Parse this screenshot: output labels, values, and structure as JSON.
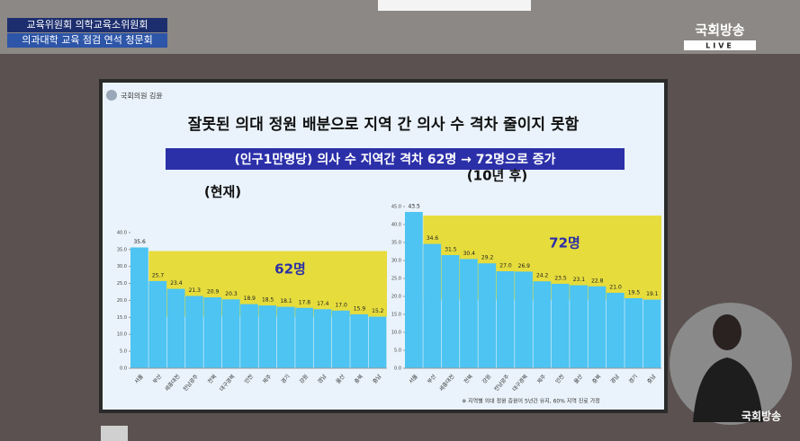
{
  "broadcast": {
    "caption_line1": "교육위원회 의학교육소위원회",
    "caption_line2": "의과대학 교육 점검 연석 청문회",
    "logo": "국회방송",
    "live": "LIVE",
    "watermark": "국회방송"
  },
  "slide": {
    "author": "국회의원 김윤",
    "title": "잘못된 의대 정원 배분으로 지역 간 의사 수 격차 줄이지 못함",
    "subtitle": "(인구1만명당) 의사 수 지역간 격차 62명 → 72명으로 증가",
    "footnote": "※ 지역별 의대 정원 증원이 5년간 유지, 60% 지역 진료 가정"
  },
  "chart_data": [
    {
      "type": "bar",
      "title": "(현재)",
      "annotation": "62명",
      "categories": [
        "서울",
        "부산",
        "세종대전",
        "전남광주",
        "전북",
        "대구경북",
        "인천",
        "제주",
        "경기",
        "강원",
        "경남",
        "울산",
        "충북",
        "충남"
      ],
      "values": [
        35.6,
        25.7,
        23.4,
        21.3,
        20.9,
        20.3,
        18.9,
        18.5,
        18.1,
        17.8,
        17.4,
        17.0,
        15.9,
        15.2
      ],
      "value_labels": [
        "35.6",
        "25.7",
        "23.4",
        "21.3",
        "20.9",
        "20.3",
        "18.9",
        "18.5",
        "18.1",
        "17.8",
        "17.4",
        "17.0",
        "15.9",
        "15.2"
      ],
      "color": "#4dc4f2",
      "band_color": "#e6dc3c",
      "ylim": [
        0,
        45
      ],
      "yticks": [
        {
          "value": 0,
          "label": "0.0"
        },
        {
          "value": 5,
          "label": "5.0"
        },
        {
          "value": 10,
          "label": "10.0"
        },
        {
          "value": 15,
          "label": "15.0"
        },
        {
          "value": 20,
          "label": "20.0"
        },
        {
          "value": 25,
          "label": "25.0"
        },
        {
          "value": 30,
          "label": "30.0"
        },
        {
          "value": 35,
          "label": "35.0"
        },
        {
          "value": 40,
          "label": "40.0"
        }
      ]
    },
    {
      "type": "bar",
      "title": "(10년 후)",
      "annotation": "72명",
      "categories": [
        "서울",
        "부산",
        "세종대전",
        "전북",
        "강원",
        "전남광주",
        "대구경북",
        "제주",
        "인천",
        "울산",
        "충북",
        "경남",
        "경기",
        "충남"
      ],
      "values": [
        43.5,
        34.6,
        31.5,
        30.4,
        29.2,
        27.0,
        26.9,
        24.2,
        23.5,
        23.1,
        22.8,
        21.0,
        19.5,
        19.1
      ],
      "value_labels": [
        "43.5",
        "34.6",
        "31.5",
        "30.4",
        "29.2",
        "27.0",
        "26.9",
        "24.2",
        "23.5",
        "23.1",
        "22.8",
        "21.0",
        "19.5",
        "19.1"
      ],
      "color": "#4dc4f2",
      "band_color": "#e6dc3c",
      "ylim": [
        0,
        47
      ],
      "yticks": [
        {
          "value": 0,
          "label": "0.0"
        },
        {
          "value": 5,
          "label": "5.0"
        },
        {
          "value": 10,
          "label": "10.0"
        },
        {
          "value": 15,
          "label": "15.0"
        },
        {
          "value": 20,
          "label": "20.0"
        },
        {
          "value": 25,
          "label": "25.0"
        },
        {
          "value": 30,
          "label": "30.0"
        },
        {
          "value": 35,
          "label": "35.0"
        },
        {
          "value": 40,
          "label": "40.0"
        },
        {
          "value": 45,
          "label": "45.0"
        }
      ]
    }
  ]
}
